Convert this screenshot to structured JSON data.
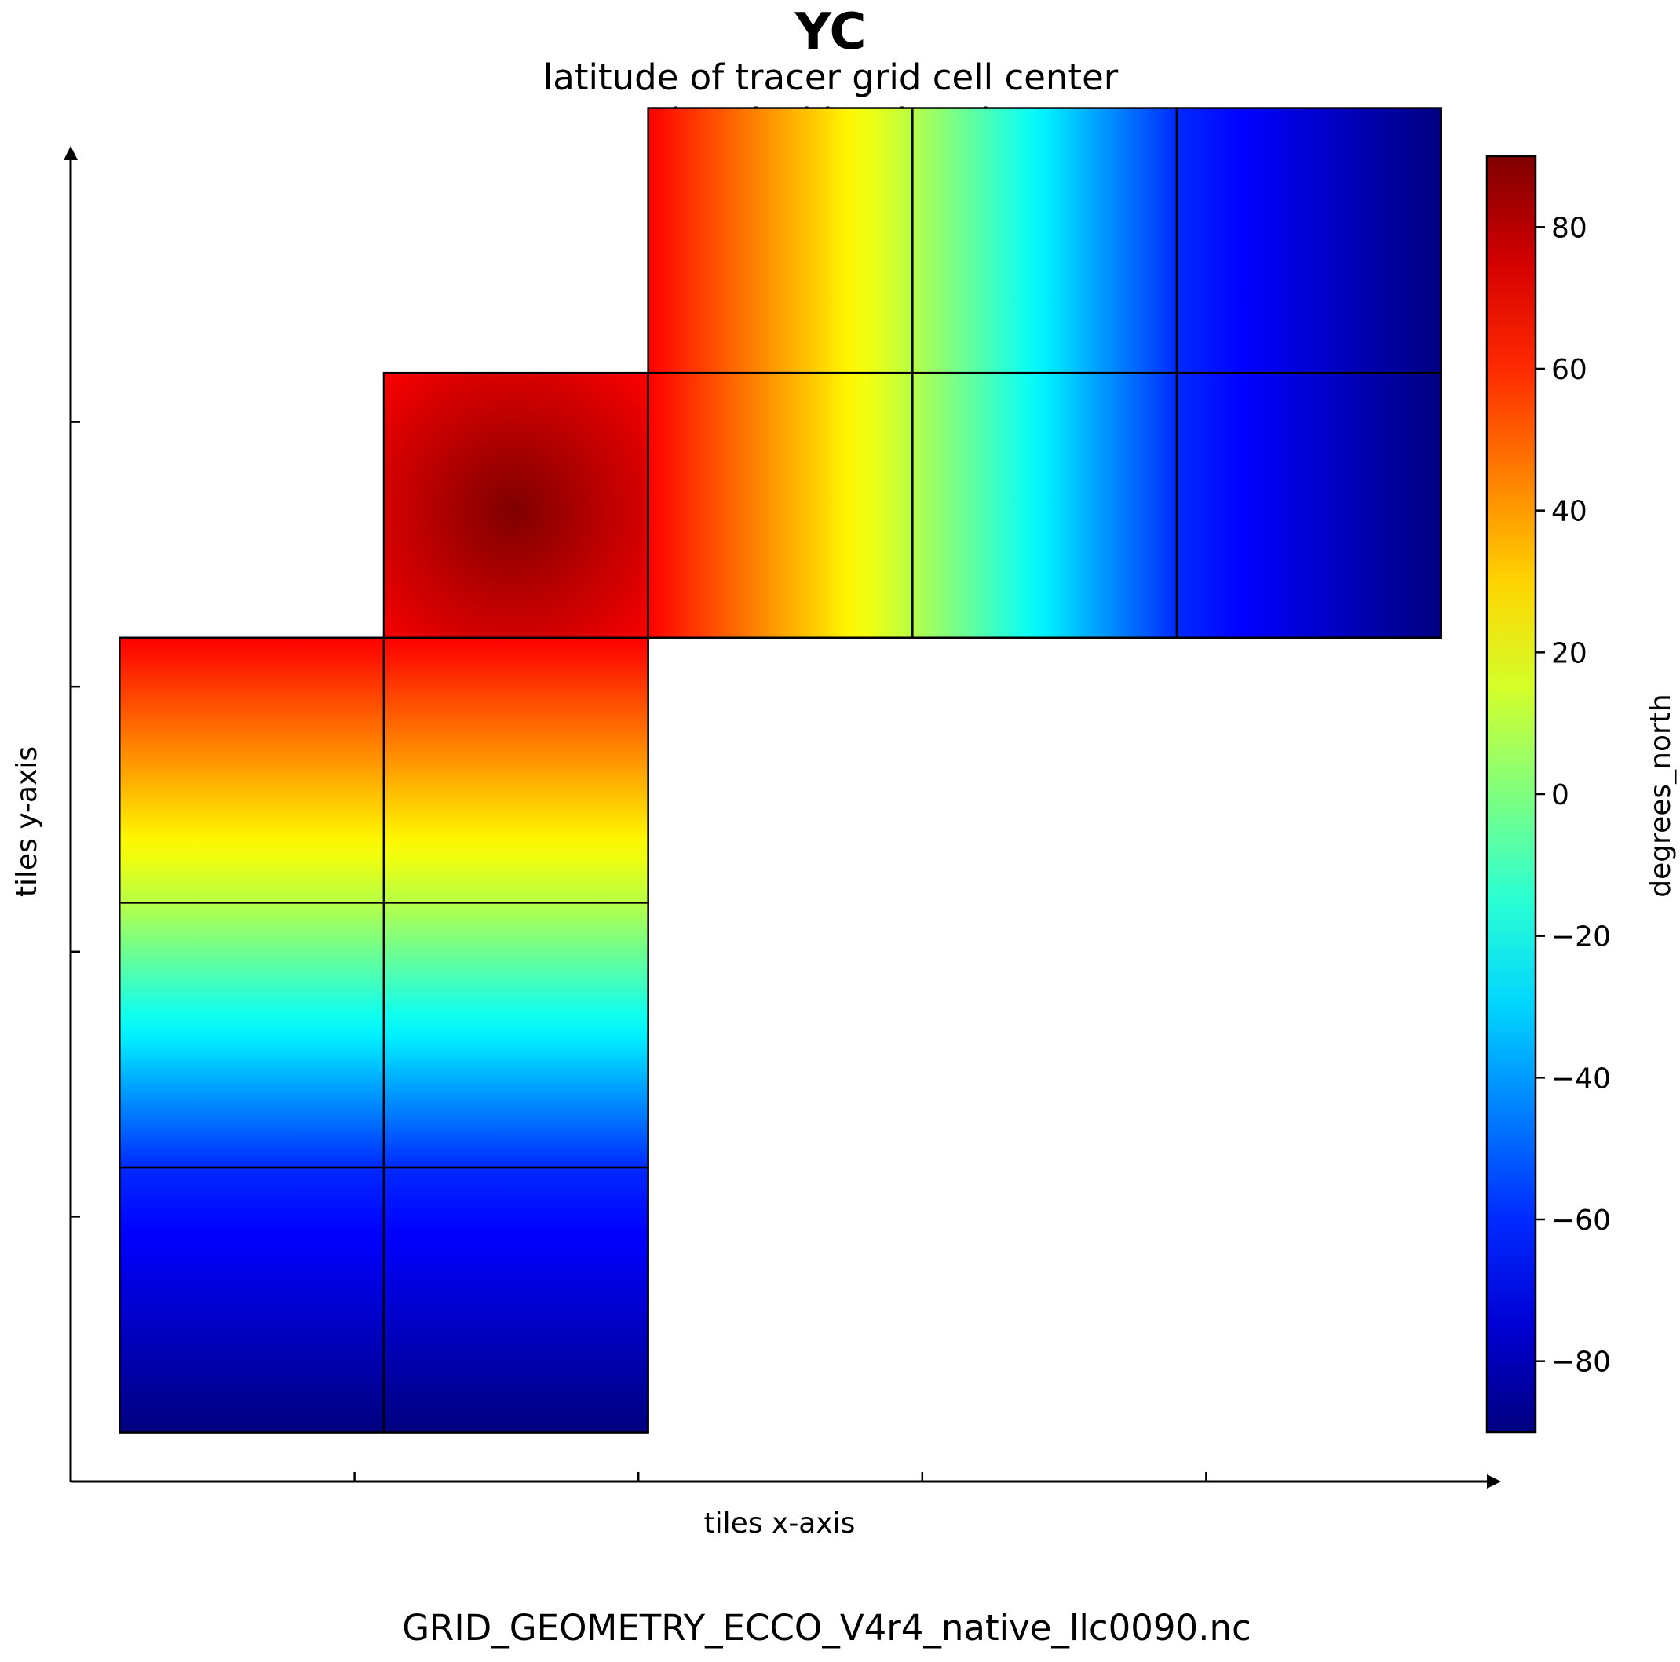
{
  "chart_data": {
    "type": "heatmap",
    "title": "YC",
    "subtitle_lines": [
      "latitude of tracer grid cell center",
      "(vertical level = 1)"
    ],
    "xlabel": "tiles x-axis",
    "ylabel": "tiles y-axis",
    "footer": "GRID_GEOMETRY_ECCO_V4r4_native_llc0090.nc",
    "colormap": "jet",
    "colormap_stops": [
      "#00007f",
      "#0000ff",
      "#007fff",
      "#00ffff",
      "#7fff7f",
      "#ffff00",
      "#ff7f00",
      "#ff0000",
      "#7f0000"
    ],
    "colorbar": {
      "label": "degrees_north",
      "vmin": -90,
      "vmax": 90,
      "ticks": [
        80,
        60,
        40,
        20,
        0,
        -20,
        -40,
        -60,
        -80
      ],
      "tick_labels": [
        "80",
        "60",
        "40",
        "20",
        "0",
        "−20",
        "−40",
        "−60",
        "−80"
      ]
    },
    "x_range_tiles": [
      -0.185,
      5.185
    ],
    "y_range_tiles": [
      -0.185,
      4.815
    ],
    "x_ticks": [
      1,
      2,
      3,
      4
    ],
    "y_ticks": [
      1,
      2,
      3,
      4
    ],
    "grid": false,
    "tiles": [
      {
        "col": 0,
        "row": 0,
        "kind": "v",
        "top": -60,
        "bottom": -90
      },
      {
        "col": 1,
        "row": 0,
        "kind": "v",
        "top": -60,
        "bottom": -90
      },
      {
        "col": 0,
        "row": 1,
        "kind": "v",
        "top": 10,
        "bottom": -60
      },
      {
        "col": 1,
        "row": 1,
        "kind": "v",
        "top": 10,
        "bottom": -60
      },
      {
        "col": 0,
        "row": 2,
        "kind": "v",
        "top": 68,
        "bottom": 10
      },
      {
        "col": 1,
        "row": 2,
        "kind": "v",
        "top": 68,
        "bottom": 10
      },
      {
        "col": 1,
        "row": 3,
        "kind": "arctic",
        "max": 90,
        "edge": 68
      },
      {
        "col": 2,
        "row": 3,
        "kind": "h",
        "left": 68,
        "right": 10
      },
      {
        "col": 3,
        "row": 3,
        "kind": "h",
        "left": 10,
        "right": -60
      },
      {
        "col": 4,
        "row": 3,
        "kind": "h",
        "left": -60,
        "right": -90
      },
      {
        "col": 2,
        "row": 4,
        "kind": "h",
        "left": 68,
        "right": 10
      },
      {
        "col": 3,
        "row": 4,
        "kind": "h",
        "left": 10,
        "right": -60
      },
      {
        "col": 4,
        "row": 4,
        "kind": "h",
        "left": -60,
        "right": -90
      }
    ]
  }
}
